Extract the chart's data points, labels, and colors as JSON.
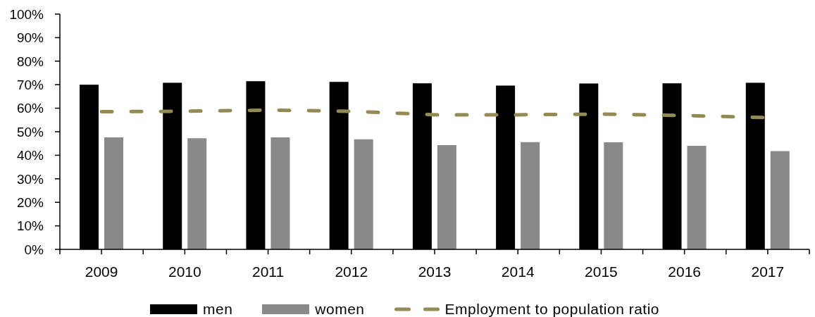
{
  "chart_data": {
    "type": "bar",
    "categories": [
      "2009",
      "2010",
      "2011",
      "2012",
      "2013",
      "2014",
      "2015",
      "2016",
      "2017"
    ],
    "series": [
      {
        "name": "men",
        "color": "#000000",
        "values": [
          70.0,
          70.8,
          71.5,
          71.2,
          70.6,
          69.6,
          70.5,
          70.6,
          70.8
        ]
      },
      {
        "name": "women",
        "color": "#898989",
        "values": [
          47.6,
          47.2,
          47.6,
          46.8,
          44.3,
          45.6,
          45.5,
          44.0,
          41.8
        ]
      },
      {
        "name": "Employment to population ratio",
        "type": "line",
        "color": "#948a54",
        "line_style": "dashed",
        "marker": "none",
        "values": [
          58.5,
          58.7,
          59.2,
          58.7,
          57.2,
          57.2,
          57.5,
          56.9,
          56.0
        ]
      }
    ],
    "ylim": [
      0,
      100
    ],
    "yticks": [
      {
        "value": 0,
        "label": "0%"
      },
      {
        "value": 10,
        "label": "10%"
      },
      {
        "value": 20,
        "label": "20%"
      },
      {
        "value": 30,
        "label": "30%"
      },
      {
        "value": 40,
        "label": "40%"
      },
      {
        "value": 50,
        "label": "50%"
      },
      {
        "value": 60,
        "label": "60%"
      },
      {
        "value": 70,
        "label": "70%"
      },
      {
        "value": 80,
        "label": "80%"
      },
      {
        "value": 90,
        "label": "90%"
      },
      {
        "value": 100,
        "label": "100%"
      }
    ],
    "legend": "bottom"
  }
}
